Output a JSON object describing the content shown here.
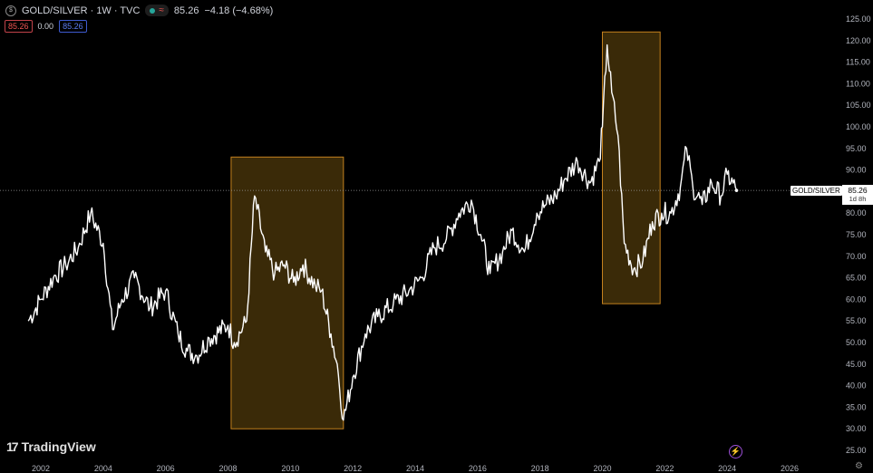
{
  "header": {
    "symbol_icon": "gold-silver-symbol-icon",
    "title": "GOLD/SILVER · 1W · TVC",
    "approx_symbol": "≈",
    "price": "85.26",
    "change": "−4.18 (−4.68%)"
  },
  "indicators": {
    "bid": "85.26",
    "spread": "0.00",
    "ask": "85.26"
  },
  "price_scale_labels": [
    "125.00",
    "120.00",
    "115.00",
    "110.00",
    "105.00",
    "100.00",
    "95.00",
    "90.00",
    "85.00",
    "80.00",
    "75.00",
    "70.00",
    "65.00",
    "60.00",
    "55.00",
    "50.00",
    "45.00",
    "40.00",
    "35.00",
    "30.00",
    "25.00"
  ],
  "time_labels": [
    "2002",
    "2004",
    "2006",
    "2008",
    "2010",
    "2012",
    "2014",
    "2016",
    "2018",
    "2020",
    "2022",
    "2024",
    "2026"
  ],
  "symbol_label": "GOLD/SILVER",
  "price_tag": {
    "price": "85.26",
    "countdown": "1d 8h"
  },
  "logo_text": "TradingView",
  "colors": {
    "line": "#ffffff",
    "highlight_fill": "#3a2a08",
    "highlight_stroke": "#c4811e",
    "price_line": "#9a9a9a"
  },
  "chart_data": {
    "type": "line",
    "series": [
      {
        "x": [
          2001.6,
          2002.0,
          2002.4,
          2002.8,
          2003.2,
          2003.6,
          2004.0,
          2004.3,
          2004.6,
          2005.0,
          2005.5,
          2006.0,
          2006.4,
          2006.7,
          2007.0,
          2007.4,
          2008.0,
          2008.2,
          2008.6,
          2008.85,
          2009.2,
          2009.5,
          2009.8,
          2010.1,
          2010.4,
          2010.8,
          2011.0,
          2011.3,
          2011.5,
          2011.7,
          2012.0,
          2012.4,
          2012.8,
          2013.3,
          2013.8,
          2014.2,
          2014.6,
          2015.0,
          2015.4,
          2015.8,
          2016.1,
          2016.4,
          2016.8,
          2017.1,
          2017.5,
          2017.9,
          2018.2,
          2018.5,
          2018.8,
          2019.2,
          2019.6,
          2019.9,
          2020.0,
          2020.15,
          2020.3,
          2020.5,
          2020.7,
          2021.0,
          2021.3,
          2021.6,
          2021.9,
          2022.2,
          2022.5,
          2022.7,
          2022.9,
          2023.2,
          2023.5,
          2023.8,
          2024.0,
          2024.3
        ],
        "values": [
          55,
          60,
          65,
          68,
          72,
          80,
          73,
          53,
          60,
          65,
          58,
          62,
          52,
          48,
          47,
          51,
          54,
          50,
          55,
          84,
          71,
          66,
          68,
          64,
          68,
          63,
          62,
          52,
          45,
          32,
          42,
          52,
          56,
          59,
          62,
          65,
          72,
          74,
          80,
          83,
          75,
          66,
          71,
          76,
          71,
          80,
          82,
          84,
          88,
          92,
          87,
          92,
          100,
          119,
          108,
          98,
          73,
          67,
          69,
          78,
          80,
          80,
          86,
          95,
          86,
          82,
          87,
          84,
          89,
          85.26
        ]
      }
    ],
    "highlight_ranges": [
      {
        "x_start": 2008.1,
        "x_end": 2011.7,
        "y_min": 30,
        "y_max": 93
      },
      {
        "x_start": 2020.0,
        "x_end": 2021.85,
        "y_min": 59,
        "y_max": 122
      }
    ],
    "current_value": 85.26,
    "xlim": [
      2001.2,
      2026.0
    ],
    "ylim": [
      24,
      127
    ],
    "title": "",
    "xlabel": "",
    "ylabel": ""
  }
}
